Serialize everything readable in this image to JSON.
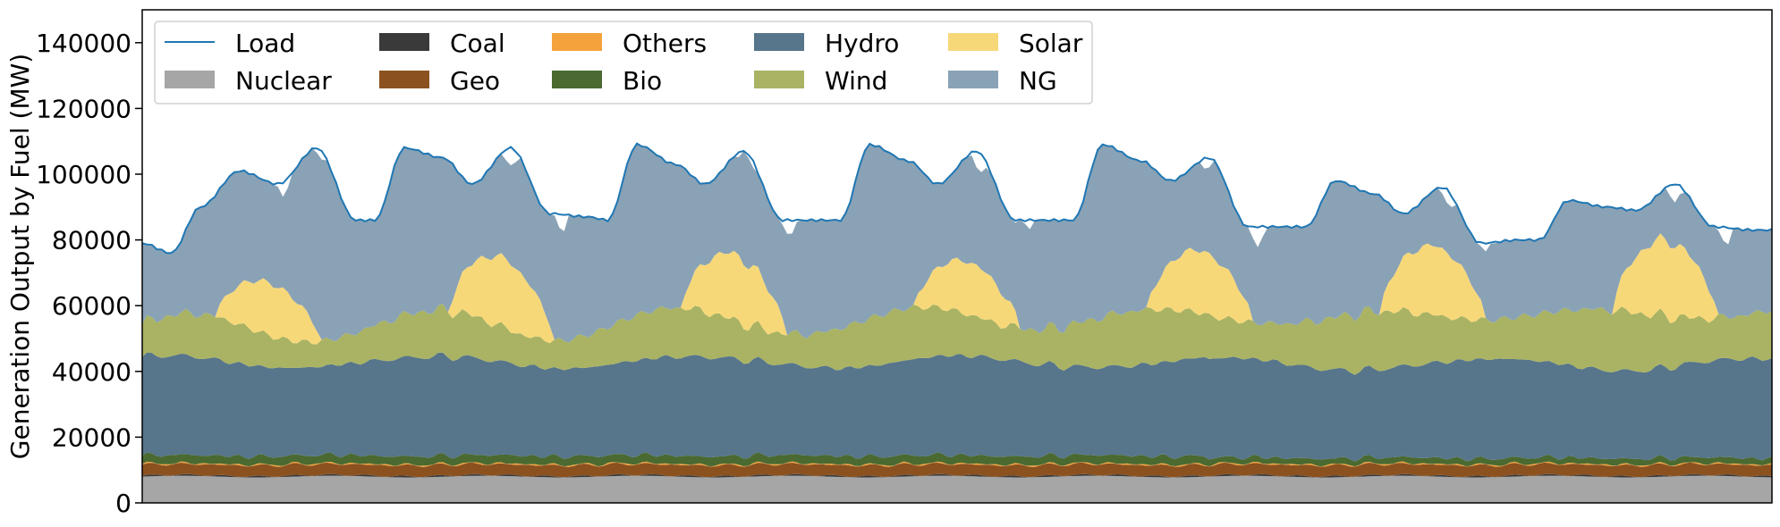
{
  "chart_data": {
    "type": "area",
    "stacked": true,
    "title": "",
    "xlabel": "",
    "ylabel": "Generation Output by Fuel (MW)",
    "ylim": [
      0,
      150000
    ],
    "yticks": [
      0,
      20000,
      40000,
      60000,
      80000,
      100000,
      120000,
      140000
    ],
    "ytick_labels": [
      "0",
      "20000",
      "40000",
      "60000",
      "80000",
      "100000",
      "120000",
      "140000"
    ],
    "x_range": [
      0,
      168
    ],
    "x_ticks_shown": false,
    "grid": false,
    "legend": {
      "placement": "upper-left",
      "columns": 5
    },
    "legend_order": [
      "Load",
      "Nuclear",
      "Coal",
      "Geo",
      "Others",
      "Bio",
      "Hydro",
      "Wind",
      "Solar",
      "NG"
    ],
    "colors": {
      "Load": "#1f77b4",
      "Nuclear": "#a6a6a6",
      "Coal": "#3a3a3a",
      "Geo": "#8b5220",
      "Others": "#f4a23b",
      "Bio": "#4a6a31",
      "Hydro": "#57758b",
      "Wind": "#a9b363",
      "Solar": "#f7d879",
      "NG": "#8aa2b5"
    },
    "load_keypoints": {
      "hours": [
        0,
        3,
        6,
        10,
        14,
        18,
        22,
        24,
        27,
        31,
        34,
        38,
        42,
        46,
        48,
        51,
        55,
        58,
        62,
        66,
        70,
        72,
        75,
        79,
        82,
        86,
        90,
        94,
        96,
        99,
        103,
        106,
        110,
        114,
        118,
        120,
        123,
        127,
        130,
        134,
        138,
        142,
        144,
        147,
        151,
        154,
        158,
        162,
        166,
        168
      ],
      "values": [
        79000,
        76000,
        90000,
        101000,
        97000,
        108000,
        86000,
        86000,
        108000,
        105000,
        97000,
        108000,
        88000,
        87000,
        86000,
        109000,
        103000,
        97000,
        107000,
        86000,
        86000,
        86000,
        109000,
        104000,
        97000,
        107000,
        86000,
        86000,
        86000,
        109000,
        104000,
        98000,
        105000,
        84000,
        84000,
        84000,
        98000,
        94000,
        88000,
        96000,
        79000,
        80000,
        80000,
        92000,
        90000,
        89000,
        97000,
        84000,
        83000,
        83000
      ]
    },
    "series_ranges": [
      {
        "name": "Nuclear",
        "min": 7800,
        "max": 8400
      },
      {
        "name": "Coal",
        "min": 0,
        "max": 800
      },
      {
        "name": "Geo",
        "min": 3000,
        "max": 3800
      },
      {
        "name": "Others",
        "min": 0,
        "max": 600
      },
      {
        "name": "Bio",
        "min": 1200,
        "max": 3000
      },
      {
        "name": "Hydro",
        "min": 26000,
        "max": 31000
      },
      {
        "name": "Wind",
        "min": 7000,
        "max": 19000
      },
      {
        "name": "Solar",
        "min": 0,
        "max": 23000
      },
      {
        "name": "NG",
        "min": 20000,
        "max": 53000
      }
    ],
    "solar_daily_peaks": [
      16000,
      21000,
      20000,
      16000,
      19000,
      21000,
      23000
    ]
  }
}
